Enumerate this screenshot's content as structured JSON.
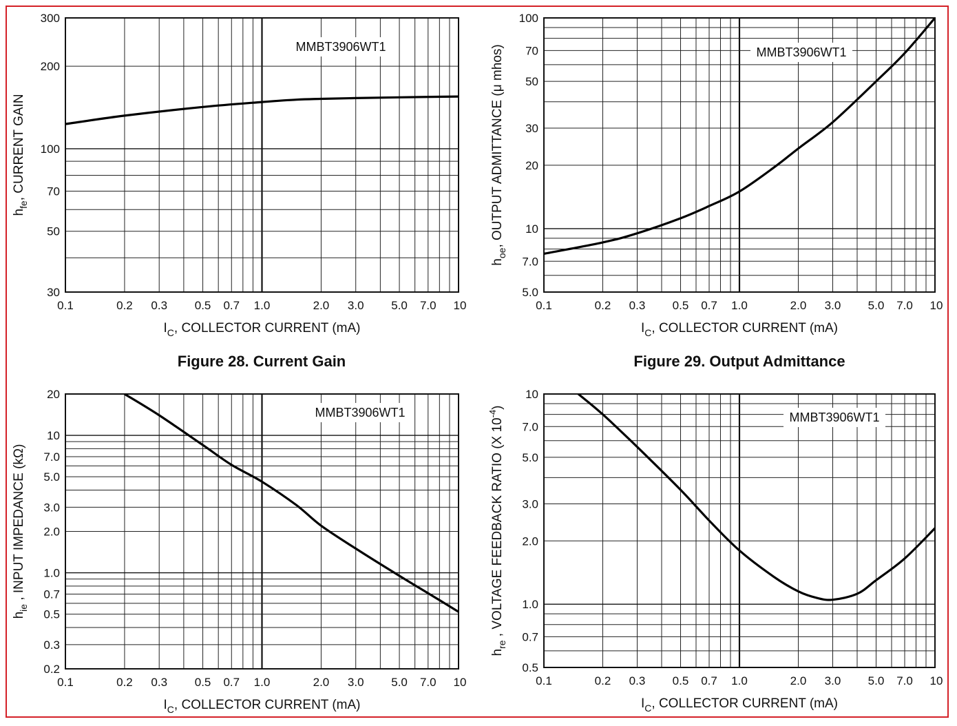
{
  "frame": {
    "border_color": "#d42027"
  },
  "figure_captions": [
    "Figure 28. Current Gain",
    "Figure 29. Output Admittance"
  ],
  "chart_data": [
    {
      "type": "line",
      "scale": "log-log",
      "grid": true,
      "legend": "top-right",
      "title": "",
      "annotation": "MMBT3906WT1",
      "xlabel": "I_C, COLLECTOR CURRENT (mA)",
      "ylabel": "h_fe, CURRENT GAIN",
      "xlim": [
        0.1,
        10
      ],
      "ylim": [
        30,
        300
      ],
      "x_ticks": [
        "0.1",
        "0.2",
        "0.3",
        "0.5",
        "0.7",
        "1.0",
        "2.0",
        "3.0",
        "5.0",
        "7.0",
        "10"
      ],
      "y_ticks": [
        "30",
        "50",
        "70",
        "100",
        "200",
        "300"
      ],
      "series": [
        {
          "x": [
            0.1,
            0.2,
            0.5,
            1.0,
            1.5,
            2.0,
            3.0,
            5.0,
            10
          ],
          "y": [
            123,
            132,
            142,
            148,
            151,
            152,
            153,
            154,
            155
          ]
        }
      ]
    },
    {
      "type": "line",
      "scale": "log-log",
      "grid": true,
      "legend": "top-right",
      "title": "",
      "annotation": "MMBT3906WT1",
      "xlabel": "I_C, COLLECTOR CURRENT (mA)",
      "ylabel": "h_oe, OUTPUT ADMITTANCE (μ mhos)",
      "xlim": [
        0.1,
        10
      ],
      "ylim": [
        5,
        100
      ],
      "x_ticks": [
        "0.1",
        "0.2",
        "0.3",
        "0.5",
        "0.7",
        "1.0",
        "2.0",
        "3.0",
        "5.0",
        "7.0",
        "10"
      ],
      "y_ticks": [
        "5.0",
        "7.0",
        "10",
        "20",
        "30",
        "50",
        "70",
        "100"
      ],
      "series": [
        {
          "x": [
            0.1,
            0.2,
            0.3,
            0.5,
            0.7,
            1.0,
            1.5,
            2.0,
            3.0,
            5.0,
            7.0,
            10
          ],
          "y": [
            7.6,
            8.6,
            9.5,
            11.2,
            12.8,
            15,
            19.5,
            24,
            32,
            50,
            68,
            100
          ]
        }
      ]
    },
    {
      "type": "line",
      "scale": "log-log",
      "grid": true,
      "legend": "top-right",
      "title": "",
      "annotation": "MMBT3906WT1",
      "xlabel": "I_C, COLLECTOR CURRENT (mA)",
      "ylabel": "h_ie , INPUT IMPEDANCE (kΩ)",
      "xlim": [
        0.1,
        10
      ],
      "ylim": [
        0.2,
        20
      ],
      "x_ticks": [
        "0.1",
        "0.2",
        "0.3",
        "0.5",
        "0.7",
        "1.0",
        "2.0",
        "3.0",
        "5.0",
        "7.0",
        "10"
      ],
      "y_ticks": [
        "0.2",
        "0.3",
        "0.5",
        "0.7",
        "1.0",
        "2.0",
        "3.0",
        "5.0",
        "7.0",
        "10",
        "20"
      ],
      "series": [
        {
          "x": [
            0.2,
            0.3,
            0.5,
            0.7,
            1.0,
            1.5,
            2.0,
            3.0,
            5.0,
            7.0,
            10
          ],
          "y": [
            20,
            14,
            8.5,
            6.1,
            4.6,
            3.1,
            2.2,
            1.5,
            0.95,
            0.71,
            0.52
          ]
        }
      ]
    },
    {
      "type": "line",
      "scale": "log-log",
      "grid": true,
      "legend": "top-right",
      "title": "",
      "annotation": "MMBT3906WT1",
      "xlabel": "I_C, COLLECTOR CURRENT (mA)",
      "ylabel": "h_re , VOLTAGE FEEDBACK RATIO (X 10^-4)",
      "xlim": [
        0.1,
        10
      ],
      "ylim": [
        0.5,
        10
      ],
      "x_ticks": [
        "0.1",
        "0.2",
        "0.3",
        "0.5",
        "0.7",
        "1.0",
        "2.0",
        "3.0",
        "5.0",
        "7.0",
        "10"
      ],
      "y_ticks": [
        "0.5",
        "0.7",
        "1.0",
        "2.0",
        "3.0",
        "5.0",
        "7.0",
        "10"
      ],
      "series": [
        {
          "x": [
            0.15,
            0.2,
            0.3,
            0.5,
            0.7,
            1.0,
            1.5,
            2.0,
            2.5,
            3.0,
            4.0,
            5.0,
            7.0,
            10
          ],
          "y": [
            10,
            8.0,
            5.6,
            3.5,
            2.5,
            1.8,
            1.35,
            1.15,
            1.07,
            1.05,
            1.12,
            1.3,
            1.65,
            2.3
          ]
        }
      ]
    }
  ]
}
